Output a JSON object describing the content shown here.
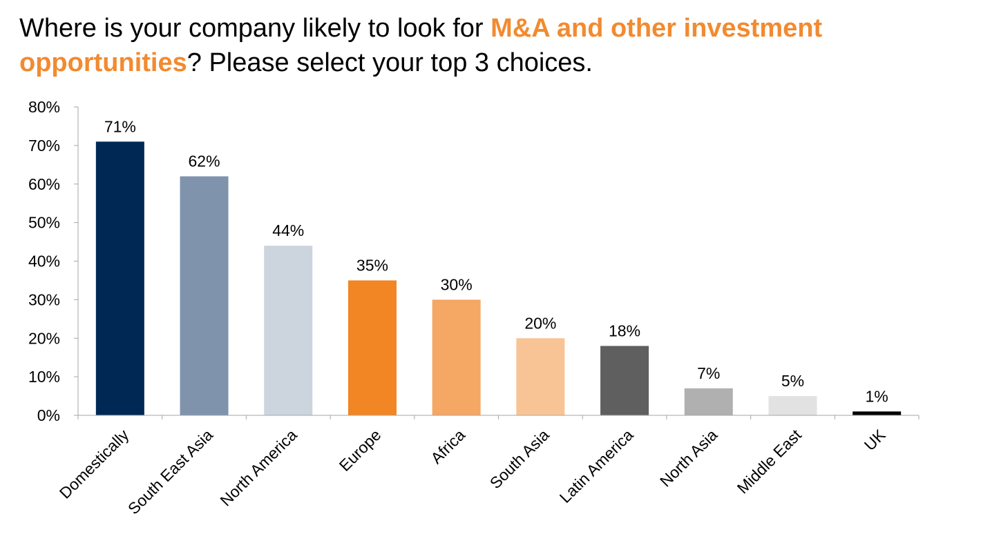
{
  "title": {
    "part1": "Where is your company likely to look for ",
    "highlight1": "M&A and other investment opportunities",
    "part2": "? Please select your top 3 choices."
  },
  "colors": {
    "accent": "#F28A30"
  },
  "chart_data": {
    "type": "bar",
    "categories": [
      "Domestically",
      "South East Asia",
      "North America",
      "Europe",
      "Africa",
      "South Asia",
      "Latin America",
      "North Asia",
      "Middle East",
      "UK"
    ],
    "values": [
      71,
      62,
      44,
      35,
      30,
      20,
      18,
      7,
      5,
      1
    ],
    "data_labels": [
      "71%",
      "62%",
      "44%",
      "35%",
      "30%",
      "20%",
      "18%",
      "7%",
      "5%",
      "1%"
    ],
    "colors": [
      "#002855",
      "#7F93AC",
      "#CCD4DE",
      "#F28524",
      "#F5A764",
      "#F8C496",
      "#5F5F5F",
      "#B0B0B0",
      "#E2E2E2",
      "#000000"
    ],
    "yticks": [
      "0%",
      "10%",
      "20%",
      "30%",
      "40%",
      "50%",
      "60%",
      "70%",
      "80%"
    ],
    "ylim": [
      0,
      80
    ],
    "xlabel": "",
    "ylabel": "",
    "grid": false,
    "legend": "none"
  }
}
